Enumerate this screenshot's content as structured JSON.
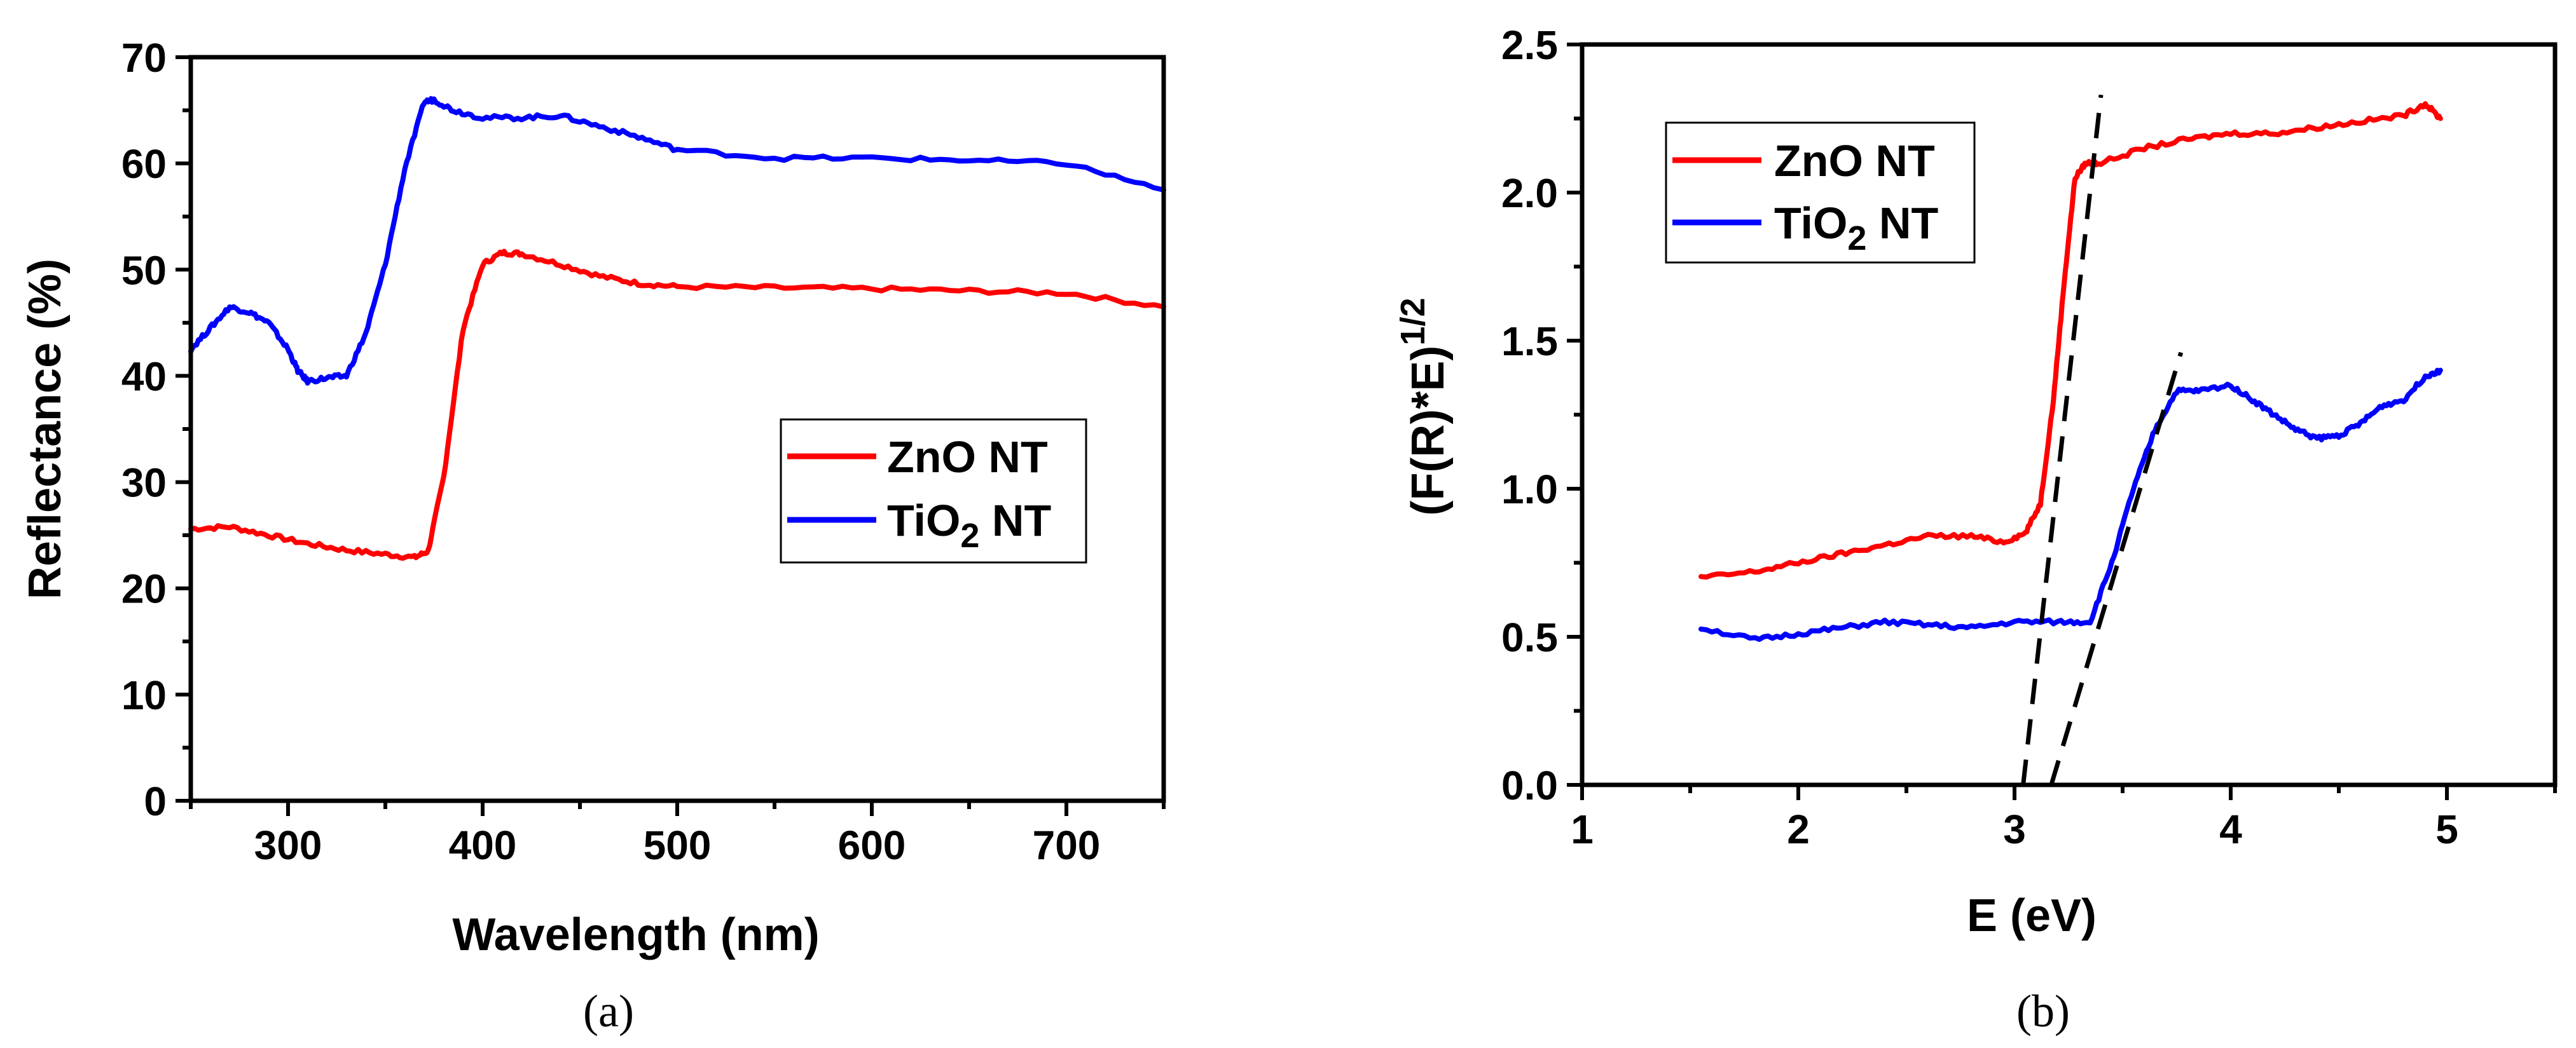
{
  "chart_data": [
    {
      "type": "line",
      "panel_label": "(a)",
      "xlabel": "Wavelength (nm)",
      "ylabel": "Reflectance (%)",
      "xlim": [
        250,
        750
      ],
      "ylim": [
        0,
        70
      ],
      "x_ticks": [
        300,
        400,
        500,
        600,
        700
      ],
      "x_tick_labels": [
        "300",
        "400",
        "500",
        "600",
        "700"
      ],
      "y_ticks": [
        0,
        10,
        20,
        30,
        40,
        50,
        60,
        70
      ],
      "y_tick_labels": [
        "0",
        "10",
        "20",
        "30",
        "40",
        "50",
        "60",
        "70"
      ],
      "legend": {
        "position": "center-right",
        "entries": [
          {
            "name_parts": [
              "ZnO NT"
            ],
            "color": "#ff0000"
          },
          {
            "name_parts": [
              "TiO",
              "2",
              " NT"
            ],
            "color": "#0000ff"
          }
        ]
      },
      "series": [
        {
          "name": "ZnO NT",
          "color": "#ff0000",
          "x": [
            250,
            270,
            290,
            310,
            330,
            350,
            365,
            372,
            380,
            390,
            400,
            410,
            420,
            440,
            460,
            480,
            500,
            550,
            600,
            650,
            700,
            750
          ],
          "y": [
            25.6,
            25.8,
            25.0,
            24.2,
            23.6,
            23.2,
            22.9,
            23.5,
            30.5,
            44.5,
            50.5,
            51.6,
            51.5,
            50.5,
            49.4,
            48.7,
            48.4,
            48.3,
            48.2,
            48.0,
            47.8,
            46.5
          ]
        },
        {
          "name": "TiO2 NT",
          "color": "#0000ff",
          "x": [
            250,
            260,
            270,
            280,
            290,
            300,
            305,
            310,
            320,
            330,
            340,
            350,
            360,
            370,
            375,
            385,
            400,
            420,
            440,
            460,
            480,
            500,
            550,
            600,
            650,
            700,
            750
          ],
          "y": [
            42.5,
            44.5,
            46.5,
            46.0,
            45.0,
            42.5,
            40.5,
            39.5,
            39.8,
            40.0,
            44.0,
            50.5,
            59.5,
            65.8,
            66.0,
            65.0,
            64.3,
            64.3,
            64.5,
            63.5,
            62.5,
            61.3,
            60.5,
            60.5,
            60.3,
            60.0,
            57.5
          ]
        }
      ]
    },
    {
      "type": "line",
      "panel_label": "(b)",
      "xlabel": "E (eV)",
      "ylabel_main": "(F(R)*E)",
      "ylabel_sup": "1/2",
      "xlim": [
        1,
        5.5
      ],
      "ylim": [
        0,
        2.5
      ],
      "x_ticks": [
        1,
        2,
        3,
        4,
        5
      ],
      "x_tick_labels": [
        "1",
        "2",
        "3",
        "4",
        "5"
      ],
      "y_ticks": [
        0,
        0.5,
        1.0,
        1.5,
        2.0,
        2.5
      ],
      "y_tick_labels": [
        "0.0",
        "0.5",
        "1.0",
        "1.5",
        "2.0",
        "2.5"
      ],
      "legend": {
        "position": "top-left",
        "entries": [
          {
            "name_parts": [
              "ZnO NT"
            ],
            "color": "#ff0000"
          },
          {
            "name_parts": [
              "TiO",
              "2",
              " NT"
            ],
            "color": "#0000ff"
          }
        ]
      },
      "series": [
        {
          "name": "ZnO NT",
          "color": "#ff0000",
          "x": [
            1.55,
            1.8,
            2.0,
            2.2,
            2.4,
            2.6,
            2.8,
            2.95,
            3.05,
            3.12,
            3.18,
            3.23,
            3.28,
            3.33,
            3.4,
            3.6,
            3.8,
            4.0,
            4.2,
            4.4,
            4.6,
            4.8,
            4.9,
            4.97
          ],
          "y": [
            0.7,
            0.72,
            0.75,
            0.78,
            0.81,
            0.84,
            0.84,
            0.82,
            0.85,
            0.95,
            1.3,
            1.7,
            2.05,
            2.1,
            2.1,
            2.15,
            2.18,
            2.2,
            2.2,
            2.22,
            2.24,
            2.26,
            2.3,
            2.25
          ]
        },
        {
          "name": "TiO2 NT",
          "color": "#0000ff",
          "x": [
            1.55,
            1.8,
            2.0,
            2.2,
            2.4,
            2.6,
            2.8,
            3.0,
            3.2,
            3.35,
            3.45,
            3.55,
            3.65,
            3.75,
            3.85,
            4.0,
            4.1,
            4.2,
            4.3,
            4.4,
            4.5,
            4.6,
            4.7,
            4.8,
            4.9,
            4.97
          ],
          "y": [
            0.53,
            0.49,
            0.51,
            0.53,
            0.55,
            0.54,
            0.53,
            0.55,
            0.55,
            0.55,
            0.75,
            1.0,
            1.2,
            1.33,
            1.33,
            1.35,
            1.3,
            1.25,
            1.2,
            1.17,
            1.18,
            1.22,
            1.28,
            1.3,
            1.38,
            1.4
          ]
        }
      ],
      "fit_lines": [
        {
          "name": "ZnO NT tangent",
          "x": [
            3.04,
            3.4
          ],
          "y": [
            0.0,
            2.33
          ]
        },
        {
          "name": "TiO2 NT tangent",
          "x": [
            3.17,
            3.77
          ],
          "y": [
            0.0,
            1.46
          ]
        }
      ]
    }
  ]
}
